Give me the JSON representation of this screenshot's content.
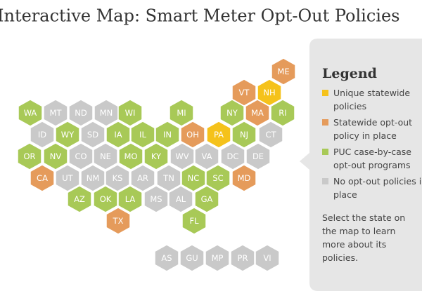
{
  "header": {
    "title": "Interactive Map: Smart Meter Opt-Out Policies"
  },
  "legend": {
    "title": "Legend",
    "items": [
      {
        "key": "unique",
        "label": "Unique statewide policies",
        "color": "#f5c21b"
      },
      {
        "key": "statewide",
        "label": "Statewide opt-out policy in place",
        "color": "#e59b5b"
      },
      {
        "key": "puc",
        "label": "PUC case-by-case opt-out programs",
        "color": "#a8c957"
      },
      {
        "key": "none",
        "label": "No opt-out policies in place",
        "color": "#c9c9c9"
      }
    ],
    "note": "Select the state on the map to learn more about its policies."
  },
  "states": [
    {
      "label": "ME",
      "category": "statewide"
    },
    {
      "label": "VT",
      "category": "statewide"
    },
    {
      "label": "NH",
      "category": "unique"
    },
    {
      "label": "WA",
      "category": "puc"
    },
    {
      "label": "MT",
      "category": "none"
    },
    {
      "label": "ND",
      "category": "none"
    },
    {
      "label": "MN",
      "category": "none"
    },
    {
      "label": "WI",
      "category": "puc"
    },
    {
      "label": "MI",
      "category": "puc"
    },
    {
      "label": "NY",
      "category": "puc"
    },
    {
      "label": "MA",
      "category": "statewide"
    },
    {
      "label": "RI",
      "category": "puc"
    },
    {
      "label": "ID",
      "category": "none"
    },
    {
      "label": "WY",
      "category": "puc"
    },
    {
      "label": "SD",
      "category": "none"
    },
    {
      "label": "IA",
      "category": "puc"
    },
    {
      "label": "IL",
      "category": "puc"
    },
    {
      "label": "IN",
      "category": "puc"
    },
    {
      "label": "OH",
      "category": "statewide"
    },
    {
      "label": "PA",
      "category": "unique"
    },
    {
      "label": "NJ",
      "category": "puc"
    },
    {
      "label": "CT",
      "category": "none"
    },
    {
      "label": "OR",
      "category": "puc"
    },
    {
      "label": "NV",
      "category": "puc"
    },
    {
      "label": "CO",
      "category": "none"
    },
    {
      "label": "NE",
      "category": "none"
    },
    {
      "label": "MO",
      "category": "puc"
    },
    {
      "label": "KY",
      "category": "puc"
    },
    {
      "label": "WV",
      "category": "none"
    },
    {
      "label": "VA",
      "category": "none"
    },
    {
      "label": "DC",
      "category": "none"
    },
    {
      "label": "DE",
      "category": "none"
    },
    {
      "label": "CA",
      "category": "statewide"
    },
    {
      "label": "UT",
      "category": "none"
    },
    {
      "label": "NM",
      "category": "none"
    },
    {
      "label": "KS",
      "category": "none"
    },
    {
      "label": "AR",
      "category": "none"
    },
    {
      "label": "TN",
      "category": "none"
    },
    {
      "label": "NC",
      "category": "puc"
    },
    {
      "label": "SC",
      "category": "puc"
    },
    {
      "label": "MD",
      "category": "statewide"
    },
    {
      "label": "AZ",
      "category": "puc"
    },
    {
      "label": "OK",
      "category": "puc"
    },
    {
      "label": "LA",
      "category": "puc"
    },
    {
      "label": "MS",
      "category": "none"
    },
    {
      "label": "AL",
      "category": "none"
    },
    {
      "label": "GA",
      "category": "puc"
    },
    {
      "label": "TX",
      "category": "statewide"
    },
    {
      "label": "FL",
      "category": "puc"
    },
    {
      "label": "AS",
      "category": "none"
    },
    {
      "label": "GU",
      "category": "none"
    },
    {
      "label": "MP",
      "category": "none"
    },
    {
      "label": "PR",
      "category": "none"
    },
    {
      "label": "VI",
      "category": "none"
    }
  ]
}
